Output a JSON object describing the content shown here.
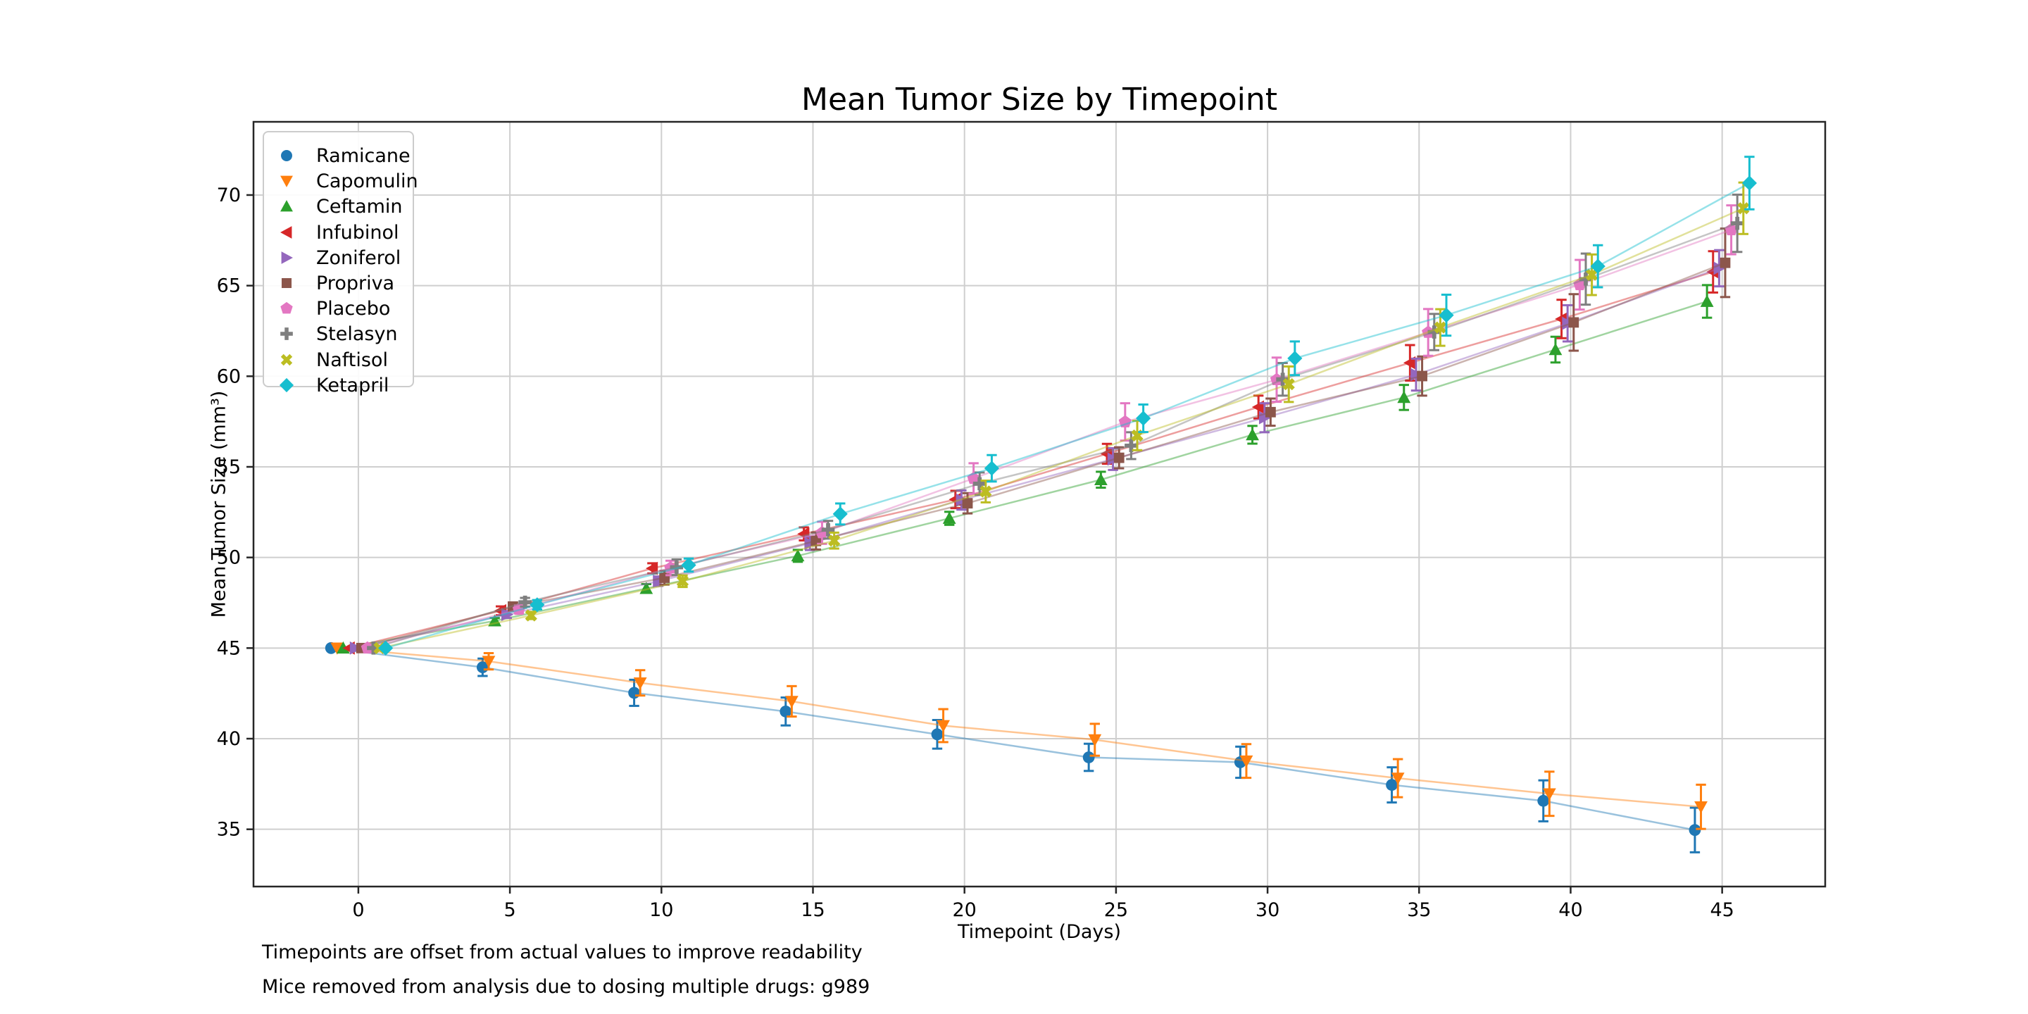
{
  "title": "Mean Tumor Size by Timepoint",
  "footnotes": [
    "Timepoints are offset from actual values to improve readability",
    "Mice removed from analysis due to dosing multiple drugs: g989"
  ],
  "chart_data": {
    "type": "line",
    "title": "Mean Tumor Size by Timepoint",
    "xlabel": "Timepoint (Days)",
    "ylabel": "Mean Tumor Size (mm³)",
    "x": [
      0,
      5,
      10,
      15,
      20,
      25,
      30,
      35,
      40,
      45
    ],
    "xticks": [
      0,
      5,
      10,
      15,
      20,
      25,
      30,
      35,
      40,
      45
    ],
    "yticks": [
      35,
      40,
      45,
      50,
      55,
      60,
      65,
      70
    ],
    "xlim": [
      -3.46,
      48.4
    ],
    "ylim": [
      31.84,
      74.04
    ],
    "grid": true,
    "grid_color": "#cfcfcf",
    "legend_position": "upper left",
    "offset_note": "each series is offset on x by 'offset' days for readability",
    "series": [
      {
        "name": "Ramicane",
        "marker": "circle",
        "color": "#1f77b4",
        "offset": -0.9,
        "values": [
          45.0,
          43.94,
          42.53,
          41.5,
          40.24,
          38.97,
          38.7,
          37.45,
          36.57,
          34.96
        ],
        "sem": [
          0,
          0.48,
          0.72,
          0.77,
          0.79,
          0.75,
          0.86,
          0.97,
          1.13,
          1.23
        ]
      },
      {
        "name": "Capomulin",
        "marker": "triangle-down",
        "color": "#ff7f0e",
        "offset": -0.7,
        "values": [
          45.0,
          44.27,
          43.08,
          42.06,
          40.72,
          39.94,
          38.77,
          37.82,
          36.96,
          36.24
        ],
        "sem": [
          0,
          0.45,
          0.7,
          0.84,
          0.91,
          0.88,
          0.93,
          1.05,
          1.22,
          1.22
        ]
      },
      {
        "name": "Ceftamin",
        "marker": "triangle-up",
        "color": "#2ca02c",
        "offset": -0.5,
        "values": [
          45.0,
          46.5,
          48.29,
          50.09,
          52.16,
          54.29,
          56.77,
          58.83,
          61.47,
          64.13
        ],
        "sem": [
          0,
          0.16,
          0.24,
          0.33,
          0.36,
          0.44,
          0.49,
          0.69,
          0.71,
          0.9
        ]
      },
      {
        "name": "Infubinol",
        "marker": "triangle-left",
        "color": "#d62728",
        "offset": -0.3,
        "values": [
          45.0,
          47.06,
          49.4,
          51.3,
          53.2,
          55.72,
          58.3,
          60.74,
          63.16,
          65.76
        ],
        "sem": [
          0,
          0.24,
          0.28,
          0.36,
          0.48,
          0.55,
          0.63,
          0.98,
          1.06,
          1.14
        ]
      },
      {
        "name": "Zoniferol",
        "marker": "triangle-right",
        "color": "#9467bd",
        "offset": -0.1,
        "values": [
          45.0,
          46.85,
          48.69,
          50.78,
          53.17,
          55.43,
          57.71,
          60.09,
          62.92,
          65.96
        ],
        "sem": [
          0,
          0.19,
          0.26,
          0.37,
          0.53,
          0.6,
          0.8,
          0.88,
          1.0,
          1.0
        ]
      },
      {
        "name": "Propriva",
        "marker": "square",
        "color": "#8c564b",
        "offset": 0.1,
        "values": [
          45.0,
          47.29,
          48.88,
          50.91,
          52.99,
          55.5,
          58.02,
          60.01,
          62.97,
          66.26
        ],
        "sem": [
          0,
          0.23,
          0.38,
          0.47,
          0.56,
          0.58,
          0.75,
          1.08,
          1.56,
          1.89
        ]
      },
      {
        "name": "Placebo",
        "marker": "pentagon",
        "color": "#e377c2",
        "offset": 0.3,
        "values": [
          45.0,
          47.13,
          49.42,
          51.36,
          54.36,
          57.48,
          59.81,
          62.42,
          65.05,
          68.08
        ],
        "sem": [
          0,
          0.22,
          0.4,
          0.61,
          0.84,
          1.03,
          1.22,
          1.29,
          1.37,
          1.35
        ]
      },
      {
        "name": "Stelasyn",
        "marker": "plus",
        "color": "#7f7f7f",
        "offset": 0.5,
        "values": [
          45.0,
          47.53,
          49.46,
          51.53,
          54.07,
          56.17,
          59.83,
          62.44,
          65.36,
          68.44
        ],
        "sem": [
          0,
          0.24,
          0.43,
          0.49,
          0.62,
          0.74,
          0.9,
          1.0,
          1.41,
          1.58
        ]
      },
      {
        "name": "Naftisol",
        "marker": "x",
        "color": "#bcbd22",
        "offset": 0.7,
        "values": [
          45.0,
          46.8,
          48.69,
          50.93,
          53.64,
          56.73,
          59.56,
          62.69,
          65.6,
          69.27
        ],
        "sem": [
          0,
          0.2,
          0.32,
          0.44,
          0.6,
          0.81,
          0.98,
          1.01,
          1.12,
          1.42
        ]
      },
      {
        "name": "Ketapril",
        "marker": "diamond",
        "color": "#17becf",
        "offset": 0.9,
        "values": [
          45.0,
          47.39,
          49.58,
          52.4,
          54.92,
          57.68,
          60.99,
          63.37,
          66.07,
          70.66
        ],
        "sem": [
          0,
          0.26,
          0.36,
          0.58,
          0.73,
          0.76,
          0.93,
          1.13,
          1.16,
          1.45
        ]
      }
    ]
  }
}
